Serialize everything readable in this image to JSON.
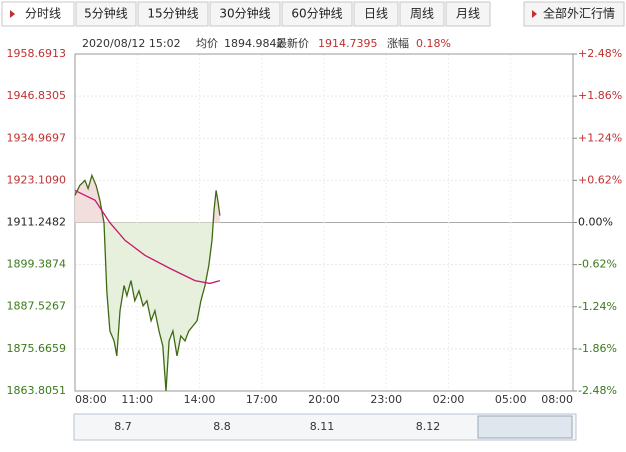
{
  "tabs": [
    "分时线",
    "5分钟线",
    "15分钟线",
    "30分钟线",
    "60分钟线",
    "日线",
    "周线",
    "月线",
    "全部外汇行情"
  ],
  "info": {
    "time": "2020/08/12 15:02",
    "avg_label": "均价",
    "avg_value": "1894.9842",
    "last_label": "最新价",
    "last_value": "1914.7395",
    "change_label": "涨幅",
    "change_value": "0.18%"
  },
  "navigator": {
    "labels": [
      "8.7",
      "8.8",
      "8.11",
      "8.12"
    ]
  },
  "chart_data": {
    "type": "line",
    "xlim": [
      0,
      1440
    ],
    "xticks": [
      {
        "value": 0,
        "label": "08:00"
      },
      {
        "value": 180,
        "label": "11:00"
      },
      {
        "value": 360,
        "label": "14:00"
      },
      {
        "value": 540,
        "label": "17:00"
      },
      {
        "value": 720,
        "label": "20:00"
      },
      {
        "value": 900,
        "label": "23:00"
      },
      {
        "value": 1080,
        "label": "02:00"
      },
      {
        "value": 1260,
        "label": "05:00"
      },
      {
        "value": 1440,
        "label": "08:00"
      }
    ],
    "ylim": [
      1863.8051,
      1958.6913
    ],
    "yticks": [
      1863.8051,
      1875.6659,
      1887.5267,
      1899.3874,
      1911.2482,
      {
        "value": 1923.109,
        "label": "1923.1090"
      },
      1934.9697,
      {
        "value": 1946.8305,
        "label": "1946.8305"
      },
      1958.6913
    ],
    "y2lim": [
      -2.48,
      2.48
    ],
    "y2ticks": [
      {
        "value": -2.48,
        "label": "-2.48%"
      },
      {
        "value": -1.86,
        "label": "-1.86%"
      },
      {
        "value": -1.24,
        "label": "-1.24%"
      },
      {
        "value": -0.62,
        "label": "-0.62%"
      },
      {
        "value": 0,
        "label": "0.00%"
      },
      {
        "value": 0.62,
        "label": "+0.62%"
      },
      {
        "value": 1.24,
        "label": "+1.24%"
      },
      {
        "value": 1.86,
        "label": "+1.86%"
      },
      {
        "value": 2.48,
        "label": "+2.48%"
      }
    ],
    "grid": true,
    "series": [
      {
        "name": "price",
        "color": "#3f6a12",
        "fill_up": "#f3dede",
        "fill_down": "#e6f0dc",
        "x": [
          0,
          14,
          29,
          38,
          49,
          61,
          72,
          84,
          92,
          101,
          113,
          121,
          130,
          142,
          150,
          162,
          173,
          185,
          197,
          208,
          220,
          231,
          243,
          254,
          263,
          272,
          283,
          295,
          306,
          318,
          329,
          341,
          353,
          364,
          376,
          387,
          396,
          402,
          408,
          413,
          419
        ],
        "values": [
          1918.9,
          1921.7,
          1923.1,
          1920.8,
          1924.5,
          1921.7,
          1917.5,
          1911.2,
          1892.0,
          1880.7,
          1877.9,
          1873.7,
          1886.4,
          1893.5,
          1890.6,
          1894.9,
          1889.2,
          1892.0,
          1887.8,
          1889.2,
          1883.6,
          1886.4,
          1880.7,
          1876.5,
          1863.8,
          1877.9,
          1880.7,
          1873.7,
          1879.3,
          1877.9,
          1880.7,
          1882.1,
          1883.6,
          1889.2,
          1893.5,
          1899.1,
          1906.2,
          1914.6,
          1920.3,
          1917.5,
          1913.2
        ]
      },
      {
        "name": "average",
        "color": "#c8186e",
        "x": [
          0,
          58,
          101,
          145,
          202,
          275,
          347,
          390,
          419
        ],
        "values": [
          1920.3,
          1917.5,
          1911.2,
          1906.2,
          1902.0,
          1898.3,
          1894.9,
          1894.1,
          1894.9
        ]
      }
    ]
  }
}
